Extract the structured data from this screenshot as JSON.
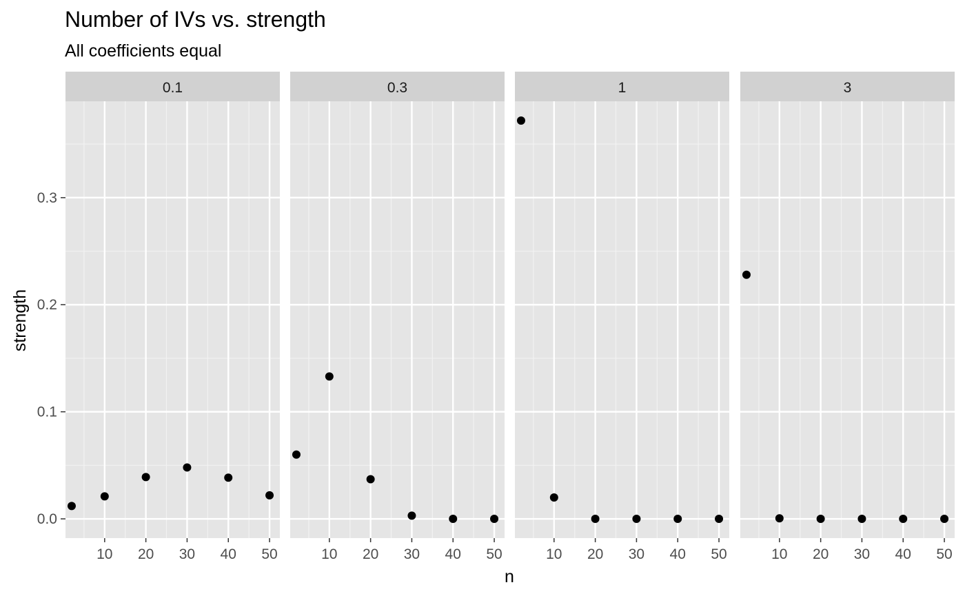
{
  "chart_data": {
    "type": "scatter",
    "title": "Number of IVs vs. strength",
    "subtitle": "All coefficients equal",
    "xlabel": "n",
    "ylabel": "strength",
    "xlim": [
      0.5,
      52.5
    ],
    "ylim": [
      -0.018,
      0.39
    ],
    "x_ticks": [
      10,
      20,
      30,
      40,
      50
    ],
    "x_tick_labels": [
      "10",
      "20",
      "30",
      "40",
      "50"
    ],
    "y_ticks": [
      0.0,
      0.1,
      0.2,
      0.3
    ],
    "y_tick_labels": [
      "0.0",
      "0.1",
      "0.2",
      "0.3"
    ],
    "grid": true,
    "panel_color": "#e5e5e5",
    "strip_color": "#d1d1d1",
    "point_color": "#000000",
    "facets": [
      {
        "label": "0.1",
        "x": [
          2,
          10,
          20,
          30,
          40,
          50
        ],
        "y": [
          0.012,
          0.021,
          0.039,
          0.048,
          0.0385,
          0.022
        ]
      },
      {
        "label": "0.3",
        "x": [
          2,
          10,
          20,
          30,
          40,
          50
        ],
        "y": [
          0.06,
          0.133,
          0.037,
          0.003,
          0.0,
          0.0
        ]
      },
      {
        "label": "1",
        "x": [
          2,
          10,
          20,
          30,
          40,
          50
        ],
        "y": [
          0.372,
          0.02,
          0.0,
          0.0,
          0.0,
          0.0
        ]
      },
      {
        "label": "3",
        "x": [
          2,
          10,
          20,
          30,
          40,
          50
        ],
        "y": [
          0.228,
          0.0005,
          0.0,
          0.0,
          0.0,
          0.0
        ]
      }
    ]
  }
}
